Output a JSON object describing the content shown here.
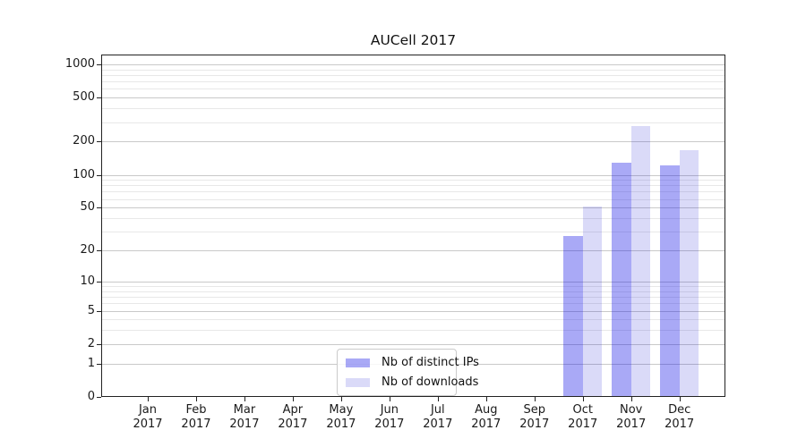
{
  "chart_data": {
    "type": "bar",
    "title": "AUCell 2017",
    "x_categories": [
      "Jan",
      "Feb",
      "Mar",
      "Apr",
      "May",
      "Jun",
      "Jul",
      "Aug",
      "Sep",
      "Oct",
      "Nov",
      "Dec"
    ],
    "x_year": "2017",
    "series": [
      {
        "name": "Nb of distinct IPs",
        "color": "#0a0ae4",
        "alpha": 0.35,
        "blended_hex": "#a8a8f4",
        "values": [
          0,
          0,
          0,
          0,
          0,
          0,
          0,
          0,
          0,
          27,
          127,
          120
        ]
      },
      {
        "name": "Nb of downloads",
        "color": "#0505d2",
        "alpha": 0.15,
        "blended_hex": "#d9d9f8",
        "values": [
          0,
          0,
          0,
          0,
          0,
          0,
          0,
          0,
          0,
          50,
          270,
          165
        ]
      }
    ],
    "y_axis": {
      "scale": "log(1+x)",
      "max": 1000,
      "ticks": [
        0,
        1,
        2,
        5,
        10,
        20,
        50,
        100,
        200,
        500,
        1000
      ],
      "tick_labels": [
        "0",
        "1",
        "2",
        "5",
        "10",
        "20",
        "50",
        "100",
        "200",
        "500",
        "1000"
      ],
      "minor_ticks": [
        3,
        4,
        6,
        7,
        8,
        9,
        30,
        40,
        60,
        70,
        80,
        90,
        300,
        400,
        600,
        700,
        800,
        900
      ]
    },
    "grid": true,
    "legend_position": "lower center",
    "colors": {
      "background": "#ffffff",
      "grid_major": "#c9c9c9",
      "grid_minor": "#e8e8e8",
      "axis": "#222222",
      "text": "#1a1a1a"
    }
  }
}
